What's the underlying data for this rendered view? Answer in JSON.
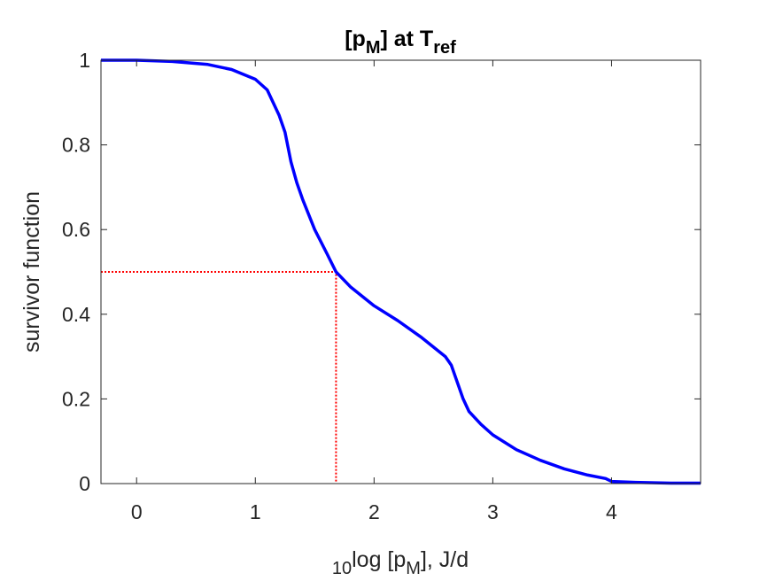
{
  "chart_data": {
    "type": "line",
    "title": "[pM] at Tref",
    "title_parts": {
      "base1": "[p",
      "sub1": "M",
      "mid": "] at T",
      "sub2": "ref"
    },
    "xlabel": "10log [pM], J/d",
    "xlabel_parts": {
      "prefix_sub": "10",
      "main": "log [p",
      "sub": "M",
      "suffix": "], J/d"
    },
    "ylabel": "survivor function",
    "xlim": [
      -0.3,
      4.75
    ],
    "ylim": [
      0,
      1
    ],
    "xticks": [
      0,
      1,
      2,
      3,
      4
    ],
    "yticks": [
      0,
      0.2,
      0.4,
      0.6,
      0.8,
      1
    ],
    "xtick_labels": [
      "0",
      "1",
      "2",
      "3",
      "4"
    ],
    "ytick_labels": [
      "0",
      "0.2",
      "0.4",
      "0.6",
      "0.8",
      "1"
    ],
    "grid": false,
    "box": true,
    "series": [
      {
        "color": "#0000ff",
        "style": "solid",
        "x": [
          -0.3,
          0.0,
          0.3,
          0.6,
          0.8,
          1.0,
          1.1,
          1.2,
          1.25,
          1.3,
          1.35,
          1.4,
          1.5,
          1.6,
          1.68,
          1.8,
          2.0,
          2.2,
          2.4,
          2.6,
          2.65,
          2.7,
          2.75,
          2.8,
          2.9,
          3.0,
          3.2,
          3.4,
          3.6,
          3.8,
          3.95,
          4.0,
          4.2,
          4.5,
          4.75
        ],
        "y": [
          1.0,
          1.0,
          0.997,
          0.99,
          0.978,
          0.955,
          0.93,
          0.87,
          0.83,
          0.76,
          0.71,
          0.67,
          0.6,
          0.545,
          0.5,
          0.465,
          0.42,
          0.385,
          0.345,
          0.3,
          0.28,
          0.24,
          0.2,
          0.17,
          0.14,
          0.115,
          0.08,
          0.055,
          0.035,
          0.02,
          0.012,
          0.005,
          0.003,
          0.001,
          0.001
        ]
      },
      {
        "color": "#ff0000",
        "style": "dotted",
        "x": [
          -0.3,
          1.68,
          1.68
        ],
        "y": [
          0.5,
          0.5,
          0.0
        ]
      }
    ]
  }
}
